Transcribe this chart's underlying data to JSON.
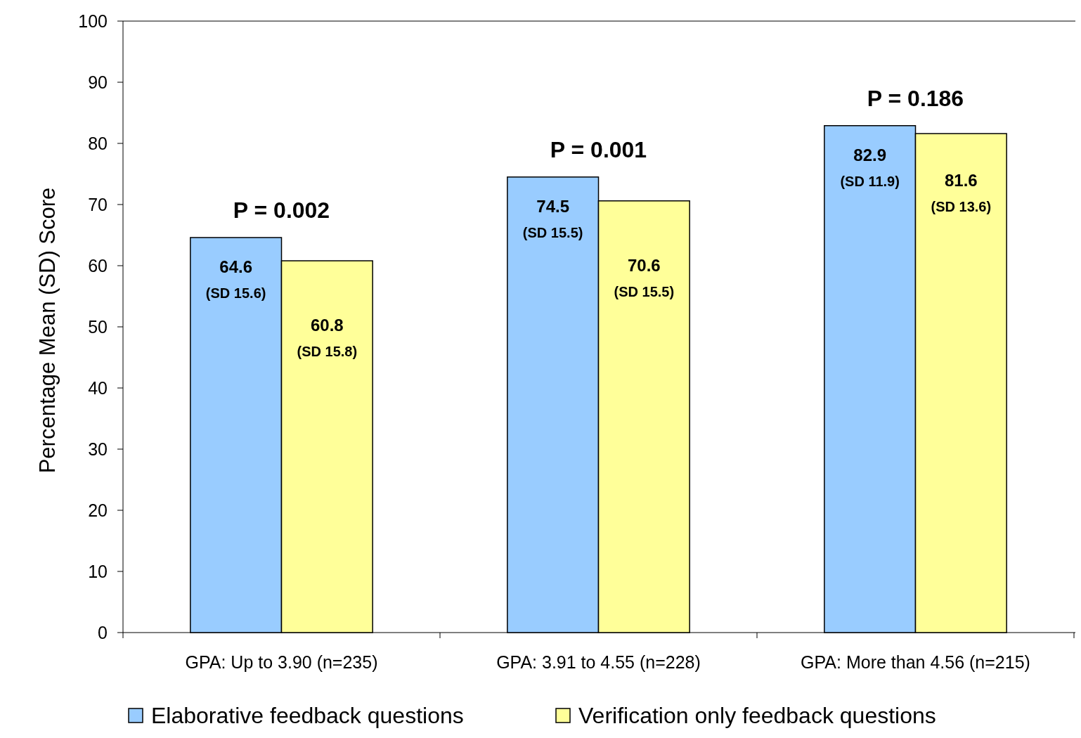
{
  "chart_data": {
    "type": "bar",
    "ylabel": "Percentage Mean (SD) Score",
    "categories": [
      "GPA: Up to 3.90 (n=235)",
      "GPA: 3.91 to 4.55 (n=228)",
      "GPA: More than 4.56 (n=215)"
    ],
    "series": [
      {
        "name": "Elaborative feedback questions",
        "color": "#99ccff",
        "values": [
          64.6,
          74.5,
          82.9
        ],
        "value_labels": [
          "64.6\n(SD 15.6)",
          "74.5\n(SD 15.5)",
          "82.9\n(SD 11.9)"
        ]
      },
      {
        "name": "Verification only feedback questions",
        "color": "#ffff99",
        "values": [
          60.8,
          70.6,
          81.6
        ],
        "value_labels": [
          "60.8\n(SD 15.8)",
          "70.6\n(SD 15.5)",
          "81.6\n(SD 13.6)"
        ]
      }
    ],
    "annotations": [
      "P = 0.002",
      "P = 0.001",
      "P = 0.186"
    ],
    "ylim": [
      0,
      100
    ],
    "yticks": [
      0,
      10,
      20,
      30,
      40,
      50,
      60,
      70,
      80,
      90,
      100
    ],
    "grid": false,
    "legend": "bottom"
  }
}
